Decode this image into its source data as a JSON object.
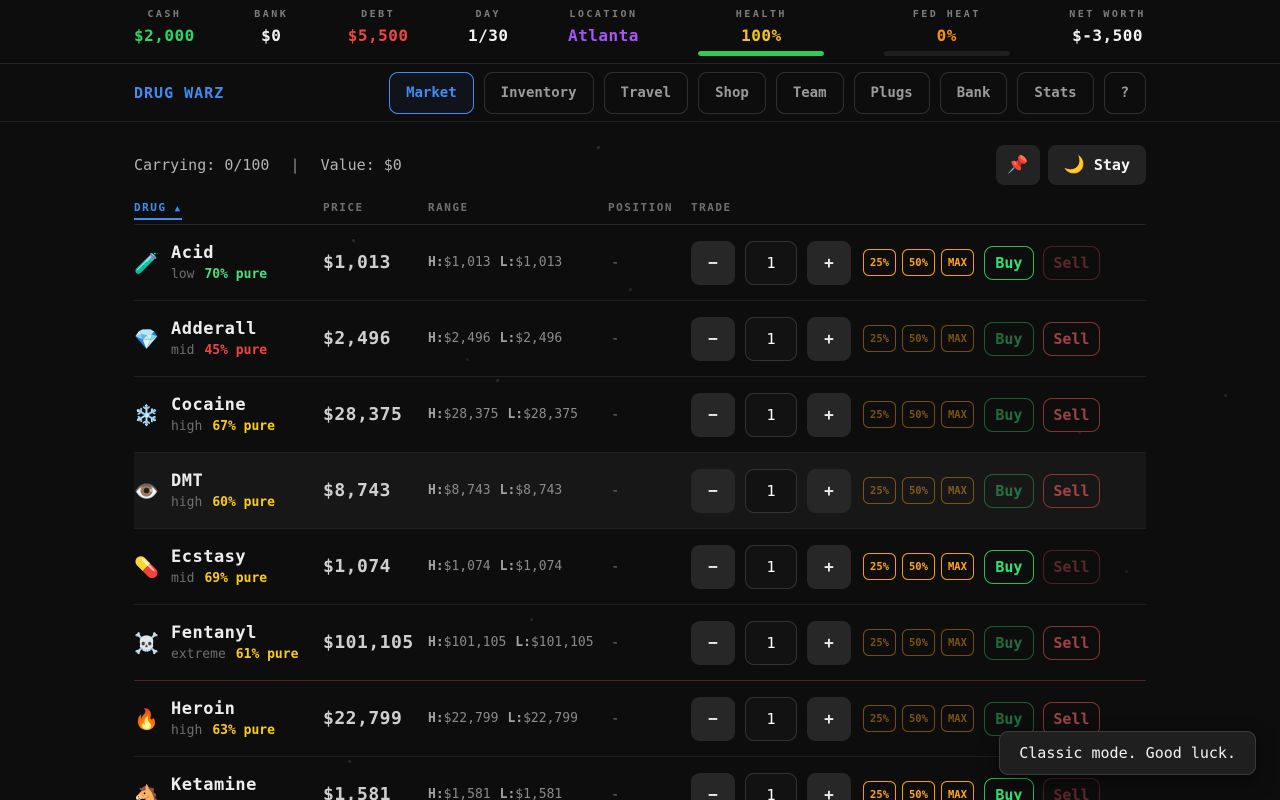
{
  "header_stats": [
    {
      "label": "CASH",
      "value": "$2,000",
      "color": "#2fd465"
    },
    {
      "label": "BANK",
      "value": "$0",
      "color": "#f2f2f2"
    },
    {
      "label": "DEBT",
      "value": "$5,500",
      "color": "#ef4444"
    },
    {
      "label": "DAY",
      "value": "1/30",
      "color": "#f2f2f2"
    },
    {
      "label": "LOCATION",
      "value": "Atlanta",
      "color": "#a855f7"
    },
    {
      "label": "HEALTH",
      "value": "100%",
      "color": "#f5c51c",
      "bar": {
        "percent": 100,
        "fill": "#2ecc55"
      }
    },
    {
      "label": "FED HEAT",
      "value": "0%",
      "color": "#f59510",
      "bar": {
        "percent": 0,
        "fill": "#f59510"
      }
    },
    {
      "label": "NET WORTH",
      "value": "$-3,500",
      "color": "#f2f2f2"
    }
  ],
  "nav": {
    "brand": "DRUG WARZ",
    "tabs": [
      {
        "label": "Market",
        "active": true
      },
      {
        "label": "Inventory"
      },
      {
        "label": "Travel"
      },
      {
        "label": "Shop"
      },
      {
        "label": "Team"
      },
      {
        "label": "Plugs"
      },
      {
        "label": "Bank"
      },
      {
        "label": "Stats"
      },
      {
        "label": "?"
      }
    ]
  },
  "statusbar": {
    "carrying_label": "Carrying:",
    "carrying_value": "0/100",
    "separator": "|",
    "value_label": "Value:",
    "value_value": "$0",
    "pin_icon": "📌",
    "stay_icon": "🌙",
    "stay_label": "Stay"
  },
  "market_table": {
    "headers": {
      "drug": "DRUG",
      "sort_arrow": "▲",
      "price": "PRICE",
      "range": "RANGE",
      "position": "POSITION",
      "trade": "TRADE"
    },
    "trade_controls": {
      "decrement": "−",
      "increment": "+",
      "pct_25": "25%",
      "pct_50": "50%",
      "pct_max": "MAX",
      "buy": "Buy",
      "sell": "Sell",
      "high_label": "H:",
      "low_label": "L:"
    },
    "rows": [
      {
        "icon": "🧪",
        "name": "Acid",
        "tier": "low",
        "purity": "70% pure",
        "purity_color": "#4ade80",
        "price": "$1,013",
        "high": "$1,013",
        "low": "$1,013",
        "position": "-",
        "quantity": "1",
        "buy_enabled": true,
        "highlighted": false,
        "danger_divider": false
      },
      {
        "icon": "💎",
        "name": "Adderall",
        "tier": "mid",
        "purity": "45% pure",
        "purity_color": "#ef4444",
        "price": "$2,496",
        "high": "$2,496",
        "low": "$2,496",
        "position": "-",
        "quantity": "1",
        "buy_enabled": false,
        "highlighted": false,
        "danger_divider": false
      },
      {
        "icon": "❄️",
        "name": "Cocaine",
        "tier": "high",
        "purity": "67% pure",
        "purity_color": "#facc15",
        "price": "$28,375",
        "high": "$28,375",
        "low": "$28,375",
        "position": "-",
        "quantity": "1",
        "buy_enabled": false,
        "highlighted": false,
        "danger_divider": false
      },
      {
        "icon": "👁️",
        "name": "DMT",
        "tier": "high",
        "purity": "60% pure",
        "purity_color": "#facc15",
        "price": "$8,743",
        "high": "$8,743",
        "low": "$8,743",
        "position": "-",
        "quantity": "1",
        "buy_enabled": false,
        "highlighted": true,
        "danger_divider": false
      },
      {
        "icon": "💊",
        "name": "Ecstasy",
        "tier": "mid",
        "purity": "69% pure",
        "purity_color": "#facc15",
        "price": "$1,074",
        "high": "$1,074",
        "low": "$1,074",
        "position": "-",
        "quantity": "1",
        "buy_enabled": true,
        "highlighted": false,
        "danger_divider": false
      },
      {
        "icon": "☠️",
        "name": "Fentanyl",
        "tier": "extreme",
        "purity": "61% pure",
        "purity_color": "#facc15",
        "price": "$101,105",
        "high": "$101,105",
        "low": "$101,105",
        "position": "-",
        "quantity": "1",
        "buy_enabled": false,
        "highlighted": false,
        "danger_divider": true
      },
      {
        "icon": "🔥",
        "name": "Heroin",
        "tier": "high",
        "purity": "63% pure",
        "purity_color": "#facc15",
        "price": "$22,799",
        "high": "$22,799",
        "low": "$22,799",
        "position": "-",
        "quantity": "1",
        "buy_enabled": false,
        "highlighted": false,
        "danger_divider": false
      },
      {
        "icon": "🐴",
        "name": "Ketamine",
        "tier": "",
        "purity": "",
        "purity_color": "",
        "price": "$1,581",
        "high": "$1,581",
        "low": "$1,581",
        "position": "-",
        "quantity": "1",
        "buy_enabled": true,
        "highlighted": false,
        "danger_divider": false
      }
    ]
  },
  "toast": {
    "message": "Classic mode. Good luck."
  }
}
